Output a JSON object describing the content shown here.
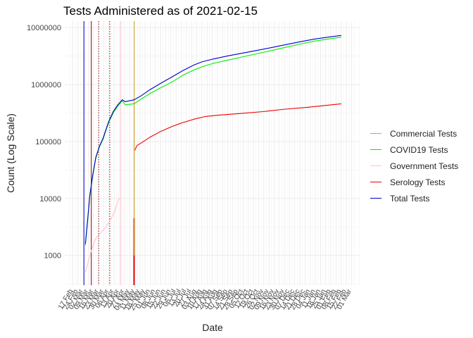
{
  "chart_data": {
    "type": "line",
    "title": "Tests Administered as of 2021-02-15",
    "xlabel": "Date",
    "ylabel": "Count (Log Scale)",
    "yscale": "log",
    "ylim": [
      300,
      13000000
    ],
    "grid": true,
    "legend_position": "right",
    "y_ticks": [
      {
        "value": 1000,
        "label": "1000"
      },
      {
        "value": 10000,
        "label": "10000"
      },
      {
        "value": 100000,
        "label": "100000"
      },
      {
        "value": 1000000,
        "label": "1000000"
      },
      {
        "value": 10000000,
        "label": "10000000"
      }
    ],
    "x_ticks": [
      "17 Feb",
      "24 Feb",
      "02 Mar",
      "09 Mar",
      "16 Mar",
      "23 Mar",
      "30 Mar",
      "06 Apr",
      "13 Apr",
      "20 Apr",
      "27 Apr",
      "04 May",
      "11 May",
      "18 May",
      "25 May",
      "01 Jun",
      "08 Jun",
      "15 Jun",
      "22 Jun",
      "29 Jun",
      "06 Jul",
      "13 Jul",
      "20 Jul",
      "27 Jul",
      "03 Aug",
      "10 Aug",
      "17 Aug",
      "24 Aug",
      "31 Aug",
      "07 Sep",
      "14 Sep",
      "21 Sep",
      "28 Sep",
      "05 Oct",
      "12 Oct",
      "19 Oct",
      "26 Oct",
      "02 Nov",
      "09 Nov",
      "16 Nov",
      "23 Nov",
      "30 Nov",
      "07 Dec",
      "14 Dec",
      "21 Dec",
      "28 Dec",
      "04 Jan",
      "11 Jan",
      "18 Jan",
      "25 Jan",
      "01 Feb",
      "08 Feb",
      "15 Feb",
      "22 Feb",
      "01 Mar"
    ],
    "series": [
      {
        "name": "Commercial Tests",
        "color": "#DAA520",
        "points": [
          [
            "2020-05-10",
            500000
          ],
          [
            "2020-05-10",
            1000
          ]
        ]
      },
      {
        "name": "COVID19 Tests",
        "color": "#00EE00",
        "points": [
          [
            "2020-03-05",
            1500
          ],
          [
            "2020-03-08",
            4000
          ],
          [
            "2020-03-11",
            11000
          ],
          [
            "2020-03-15",
            25000
          ],
          [
            "2020-03-19",
            50000
          ],
          [
            "2020-03-24",
            80000
          ],
          [
            "2020-03-29",
            110000
          ],
          [
            "2020-04-02",
            160000
          ],
          [
            "2020-04-06",
            220000
          ],
          [
            "2020-04-12",
            320000
          ],
          [
            "2020-04-18",
            420000
          ],
          [
            "2020-04-24",
            520000
          ],
          [
            "2020-04-28",
            440000
          ],
          [
            "2020-05-10",
            460000
          ],
          [
            "2020-05-20",
            560000
          ],
          [
            "2020-06-01",
            700000
          ],
          [
            "2020-06-15",
            880000
          ],
          [
            "2020-06-30",
            1100000
          ],
          [
            "2020-07-15",
            1450000
          ],
          [
            "2020-07-30",
            1800000
          ],
          [
            "2020-08-10",
            2050000
          ],
          [
            "2020-08-25",
            2350000
          ],
          [
            "2020-09-15",
            2700000
          ],
          [
            "2020-10-01",
            3000000
          ],
          [
            "2020-10-20",
            3400000
          ],
          [
            "2020-11-10",
            3900000
          ],
          [
            "2020-12-01",
            4500000
          ],
          [
            "2020-12-20",
            5100000
          ],
          [
            "2021-01-10",
            5800000
          ],
          [
            "2021-02-01",
            6400000
          ],
          [
            "2021-02-15",
            6800000
          ]
        ]
      },
      {
        "name": "Government Tests",
        "color": "#FFC0CB",
        "points": [
          [
            "2020-03-05",
            500
          ],
          [
            "2020-03-12",
            1100
          ],
          [
            "2020-03-19",
            2000
          ],
          [
            "2020-03-26",
            2500
          ],
          [
            "2020-04-02",
            3200
          ],
          [
            "2020-04-09",
            4500
          ],
          [
            "2020-04-14",
            6000
          ],
          [
            "2020-04-18",
            9000
          ],
          [
            "2020-04-20",
            10000
          ]
        ]
      },
      {
        "name": "Serology Tests",
        "color": "#EE0000",
        "points": [
          [
            "2020-05-11",
            70000
          ],
          [
            "2020-05-14",
            85000
          ],
          [
            "2020-05-20",
            95000
          ],
          [
            "2020-06-01",
            120000
          ],
          [
            "2020-06-15",
            150000
          ],
          [
            "2020-07-01",
            185000
          ],
          [
            "2020-07-15",
            215000
          ],
          [
            "2020-08-01",
            250000
          ],
          [
            "2020-08-15",
            275000
          ],
          [
            "2020-09-01",
            290000
          ],
          [
            "2020-10-01",
            310000
          ],
          [
            "2020-11-01",
            335000
          ],
          [
            "2020-12-01",
            370000
          ],
          [
            "2021-01-01",
            400000
          ],
          [
            "2021-02-01",
            440000
          ],
          [
            "2021-02-15",
            460000
          ]
        ]
      },
      {
        "name": "Total Tests",
        "color": "#0000CD",
        "points": [
          [
            "2020-03-05",
            1600
          ],
          [
            "2020-03-08",
            4200
          ],
          [
            "2020-03-11",
            11500
          ],
          [
            "2020-03-15",
            26000
          ],
          [
            "2020-03-19",
            52000
          ],
          [
            "2020-03-24",
            82000
          ],
          [
            "2020-03-29",
            115000
          ],
          [
            "2020-04-02",
            165000
          ],
          [
            "2020-04-06",
            230000
          ],
          [
            "2020-04-12",
            340000
          ],
          [
            "2020-04-18",
            440000
          ],
          [
            "2020-04-24",
            540000
          ],
          [
            "2020-04-28",
            500000
          ],
          [
            "2020-05-10",
            540000
          ],
          [
            "2020-05-20",
            640000
          ],
          [
            "2020-06-01",
            820000
          ],
          [
            "2020-06-15",
            1050000
          ],
          [
            "2020-06-30",
            1350000
          ],
          [
            "2020-07-15",
            1750000
          ],
          [
            "2020-07-30",
            2200000
          ],
          [
            "2020-08-10",
            2500000
          ],
          [
            "2020-08-25",
            2800000
          ],
          [
            "2020-09-15",
            3200000
          ],
          [
            "2020-10-01",
            3500000
          ],
          [
            "2020-10-20",
            3900000
          ],
          [
            "2020-11-10",
            4400000
          ],
          [
            "2020-12-01",
            5000000
          ],
          [
            "2020-12-20",
            5600000
          ],
          [
            "2021-01-10",
            6300000
          ],
          [
            "2021-02-01",
            6900000
          ],
          [
            "2021-02-15",
            7300000
          ]
        ]
      }
    ],
    "vertical_lines": [
      {
        "date": "2020-03-03",
        "color": "#0000CD",
        "style": "solid"
      },
      {
        "date": "2020-03-13",
        "color": "#8B0000",
        "style": "solid"
      },
      {
        "date": "2020-03-23",
        "color": "#8B0000",
        "style": "dotted"
      },
      {
        "date": "2020-04-07",
        "color": "#8B0000",
        "style": "dotted"
      },
      {
        "date": "2020-04-22",
        "color": "#FFC0CB",
        "style": "solid"
      },
      {
        "date": "2020-05-10",
        "color": "#DAA520",
        "style": "solid"
      }
    ],
    "bars": [
      {
        "date": "2020-05-10",
        "value": 4500,
        "color": "#EE0000"
      }
    ]
  }
}
